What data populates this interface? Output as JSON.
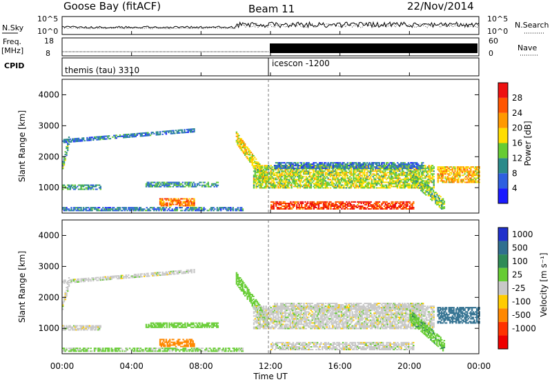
{
  "header": {
    "station": "Goose Bay (fitACF)",
    "beam": "Beam 11",
    "date": "22/Nov/2014"
  },
  "nsky_panel": {
    "label": "N.Sky",
    "right_label": "N.Search",
    "ticks_left": [
      "10^5",
      "10^0"
    ],
    "ticks_right": [
      "10^5",
      "10^0"
    ]
  },
  "freq_panel": {
    "label_line1": "Freq.",
    "label_line2": "[MHz]",
    "right_label": "Nave",
    "ticks_left": [
      "18",
      "8"
    ],
    "ticks_right": [
      "60",
      "0"
    ]
  },
  "cpid_panel": {
    "label": "CPID",
    "modes": [
      {
        "name": "themis (tau) 3310",
        "start_hour": 0
      },
      {
        "name": "icescon -1200",
        "start_hour": 11.9
      }
    ]
  },
  "x_axis": {
    "label": "Time UT",
    "ticks": [
      "00:00",
      "04:00",
      "08:00",
      "12:00",
      "16:00",
      "20:00",
      "00:00"
    ],
    "range_hours": [
      0,
      24
    ]
  },
  "y_axis": {
    "label": "Slant Range [km]",
    "ticks": [
      "1000",
      "2000",
      "3000",
      "4000"
    ],
    "range_km": [
      180,
      4500
    ]
  },
  "power_colorbar": {
    "label": "Power [dB]",
    "ticks": [
      "4",
      "8",
      "12",
      "16",
      "20",
      "24",
      "28"
    ],
    "colors": [
      "#1a1aff",
      "#2e5fe0",
      "#2a8a8a",
      "#66cc33",
      "#ffdd00",
      "#ff9900",
      "#ff5500",
      "#ee1111"
    ]
  },
  "velocity_colorbar": {
    "label": "Velocity [m s⁻¹]",
    "ticks": [
      "1000",
      "500",
      "100",
      "25",
      "-25",
      "-100",
      "-500",
      "-1000"
    ],
    "colors": [
      "#2030cc",
      "#2f6f8f",
      "#2e8b57",
      "#66cc33",
      "#c8c8c8",
      "#ffcc00",
      "#ff8800",
      "#ff3300",
      "#ee0000"
    ]
  },
  "chart_data": [
    {
      "type": "heatmap",
      "title": "Power [dB]",
      "xlabel": "Time UT",
      "ylabel": "Slant Range [km]",
      "xlim": [
        0,
        24
      ],
      "ylim": [
        180,
        4500
      ],
      "echo_regions": [
        {
          "t0": 0.0,
          "t1": 7.6,
          "r_start": 2500,
          "r_end": 2850,
          "thickness": 130,
          "value": 8
        },
        {
          "t0": 0.0,
          "t1": 0.4,
          "r_start": 1700,
          "r_end": 2600,
          "thickness": 300,
          "value": 12
        },
        {
          "t0": 0.0,
          "t1": 2.2,
          "r_start": 1000,
          "r_end": 1000,
          "thickness": 150,
          "value": 10
        },
        {
          "t0": 5.6,
          "t1": 7.6,
          "r_start": 520,
          "r_end": 520,
          "thickness": 260,
          "value": 24
        },
        {
          "t0": 4.8,
          "t1": 9.0,
          "r_start": 1100,
          "r_end": 1100,
          "thickness": 180,
          "value": 10
        },
        {
          "t0": 0.0,
          "t1": 10.4,
          "r_start": 300,
          "r_end": 300,
          "thickness": 120,
          "value": 8
        },
        {
          "t0": 10.0,
          "t1": 11.8,
          "r_start": 2600,
          "r_end": 1200,
          "thickness": 380,
          "value": 18
        },
        {
          "t0": 11.0,
          "t1": 21.4,
          "r_start": 1350,
          "r_end": 1350,
          "thickness": 760,
          "value": 16
        },
        {
          "t0": 12.2,
          "t1": 20.8,
          "r_start": 1700,
          "r_end": 1700,
          "thickness": 200,
          "value": 8
        },
        {
          "t0": 12.0,
          "t1": 20.2,
          "r_start": 420,
          "r_end": 420,
          "thickness": 260,
          "value": 28
        },
        {
          "t0": 20.0,
          "t1": 22.0,
          "r_start": 1400,
          "r_end": 400,
          "thickness": 400,
          "value": 14
        },
        {
          "t0": 21.6,
          "t1": 24.0,
          "r_start": 1400,
          "r_end": 1400,
          "thickness": 500,
          "value": 20
        }
      ]
    },
    {
      "type": "heatmap",
      "title": "Velocity [m s⁻¹]",
      "xlabel": "Time UT",
      "ylabel": "Slant Range [km]",
      "xlim": [
        0,
        24
      ],
      "ylim": [
        180,
        4500
      ],
      "echo_regions": [
        {
          "t0": 0.0,
          "t1": 7.6,
          "r_start": 2500,
          "r_end": 2850,
          "thickness": 130,
          "value": 0
        },
        {
          "t0": 0.0,
          "t1": 0.4,
          "r_start": 1700,
          "r_end": 2600,
          "thickness": 300,
          "value": 0
        },
        {
          "t0": 0.0,
          "t1": 2.2,
          "r_start": 1000,
          "r_end": 1000,
          "thickness": 150,
          "value": 0
        },
        {
          "t0": 5.6,
          "t1": 7.6,
          "r_start": 520,
          "r_end": 520,
          "thickness": 260,
          "value": -300
        },
        {
          "t0": 4.8,
          "t1": 9.0,
          "r_start": 1100,
          "r_end": 1100,
          "thickness": 180,
          "value": 60
        },
        {
          "t0": 0.0,
          "t1": 10.4,
          "r_start": 300,
          "r_end": 300,
          "thickness": 120,
          "value": 40
        },
        {
          "t0": 10.0,
          "t1": 11.8,
          "r_start": 2600,
          "r_end": 1200,
          "thickness": 380,
          "value": 60
        },
        {
          "t0": 11.0,
          "t1": 21.4,
          "r_start": 1350,
          "r_end": 1350,
          "thickness": 760,
          "value": 0
        },
        {
          "t0": 12.2,
          "t1": 20.8,
          "r_start": 1700,
          "r_end": 1700,
          "thickness": 200,
          "value": 0
        },
        {
          "t0": 12.0,
          "t1": 20.2,
          "r_start": 420,
          "r_end": 420,
          "thickness": 260,
          "value": 0
        },
        {
          "t0": 20.0,
          "t1": 22.0,
          "r_start": 1400,
          "r_end": 400,
          "thickness": 400,
          "value": 80
        },
        {
          "t0": 21.6,
          "t1": 24.0,
          "r_start": 1400,
          "r_end": 1400,
          "thickness": 500,
          "value": 700
        }
      ]
    }
  ]
}
